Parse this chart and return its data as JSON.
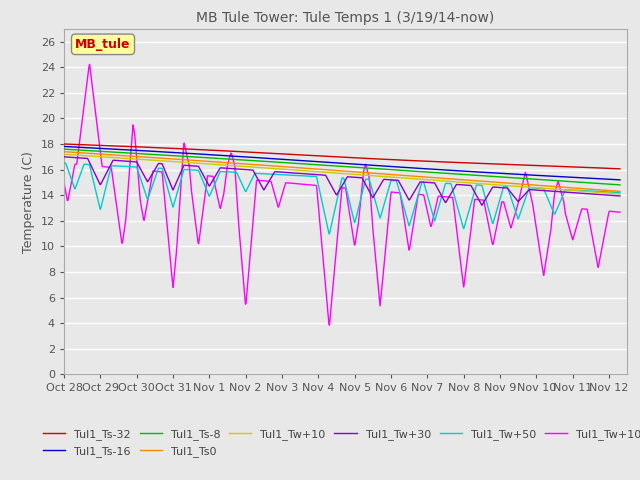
{
  "title": "MB Tule Tower: Tule Temps 1 (3/19/14-now)",
  "ylabel": "Temperature (C)",
  "ylim": [
    0,
    27
  ],
  "yticks": [
    0,
    2,
    4,
    6,
    8,
    10,
    12,
    14,
    16,
    18,
    20,
    22,
    24,
    26
  ],
  "xtick_labels": [
    "Oct 28",
    "Oct 29",
    "Oct 30",
    "Oct 31",
    "Nov 1",
    "Nov 2",
    "Nov 3",
    "Nov 4",
    "Nov 5",
    "Nov 6",
    "Nov 7",
    "Nov 8",
    "Nov 9",
    "Nov 10",
    "Nov 11",
    "Nov 12"
  ],
  "background_color": "#e8e8e8",
  "legend_box_text": "MB_tule",
  "series_colors": {
    "Tul1_Ts-32": "#cc0000",
    "Tul1_Ts-16": "#0000cc",
    "Tul1_Ts-8": "#00bb00",
    "Tul1_Ts0": "#ff8800",
    "Tul1_Tw+10": "#cccc00",
    "Tul1_Tw+30": "#8800cc",
    "Tul1_Tw+50": "#00cccc",
    "Tul1_Tw+100": "#ff00ff"
  },
  "title_fontsize": 10,
  "axis_fontsize": 9,
  "tick_fontsize": 8
}
